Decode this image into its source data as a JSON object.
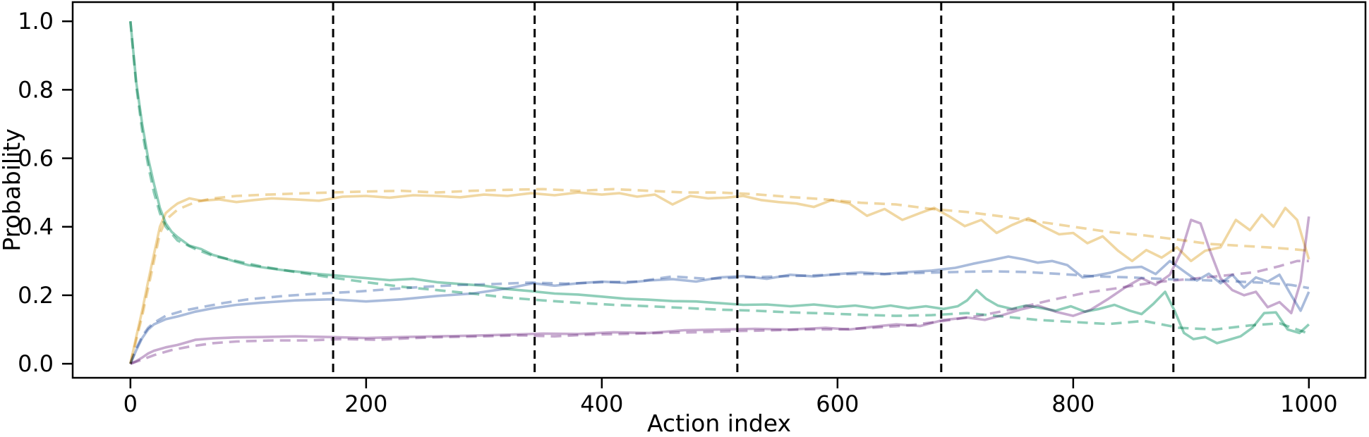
{
  "chart_data": {
    "type": "line",
    "title": "",
    "xlabel": "Action index",
    "ylabel": "Probability",
    "xlim": [
      -49,
      1048
    ],
    "ylim": [
      -0.041,
      1.056
    ],
    "xticks": [
      0,
      200,
      400,
      600,
      800,
      1000
    ],
    "xtick_labels": [
      "0",
      "200",
      "400",
      "600",
      "800",
      "1000"
    ],
    "yticks": [
      0.0,
      0.2,
      0.4,
      0.6,
      0.8,
      1.0
    ],
    "ytick_labels": [
      "0.0",
      "0.2",
      "0.4",
      "0.6",
      "0.8",
      "1.0"
    ],
    "grid": false,
    "legend_position": "none",
    "vlines": {
      "x": [
        172,
        343,
        515,
        688,
        885
      ],
      "style": "dashed",
      "color": "#000000"
    },
    "series": [
      {
        "id": "green-solid",
        "color": "#8fceb9",
        "dash": false,
        "x": [
          0,
          5,
          10,
          15,
          20,
          25,
          30,
          35,
          40,
          50,
          60,
          70,
          80,
          90,
          100,
          115,
          130,
          145,
          160,
          180,
          200,
          220,
          240,
          260,
          280,
          300,
          320,
          340,
          360,
          380,
          400,
          420,
          440,
          460,
          480,
          500,
          520,
          540,
          560,
          580,
          600,
          615,
          630,
          645,
          660,
          675,
          690,
          702,
          710,
          718,
          726,
          736,
          748,
          760,
          772,
          785,
          798,
          810,
          822,
          835,
          848,
          858,
          868,
          878,
          886,
          894,
          902,
          912,
          922,
          932,
          942,
          952,
          962,
          972,
          982,
          992,
          1000
        ],
        "y": [
          1.0,
          0.82,
          0.7,
          0.6,
          0.525,
          0.455,
          0.41,
          0.385,
          0.37,
          0.345,
          0.335,
          0.318,
          0.308,
          0.297,
          0.288,
          0.28,
          0.273,
          0.268,
          0.262,
          0.256,
          0.25,
          0.244,
          0.248,
          0.238,
          0.233,
          0.228,
          0.218,
          0.212,
          0.205,
          0.202,
          0.196,
          0.19,
          0.187,
          0.183,
          0.182,
          0.177,
          0.172,
          0.173,
          0.168,
          0.173,
          0.166,
          0.17,
          0.163,
          0.17,
          0.162,
          0.168,
          0.16,
          0.168,
          0.185,
          0.215,
          0.19,
          0.17,
          0.16,
          0.17,
          0.163,
          0.155,
          0.168,
          0.152,
          0.16,
          0.172,
          0.155,
          0.145,
          0.175,
          0.21,
          0.155,
          0.09,
          0.072,
          0.078,
          0.06,
          0.07,
          0.08,
          0.105,
          0.148,
          0.15,
          0.1,
          0.09,
          0.115
        ]
      },
      {
        "id": "green-dashed",
        "color": "#8fceb9",
        "dash": true,
        "x": [
          0,
          5,
          10,
          15,
          20,
          25,
          30,
          40,
          55,
          70,
          90,
          110,
          140,
          170,
          200,
          230,
          260,
          290,
          320,
          350,
          380,
          410,
          440,
          470,
          500,
          530,
          560,
          590,
          620,
          650,
          680,
          710,
          740,
          770,
          800,
          830,
          860,
          890,
          920,
          950,
          975,
          1000
        ],
        "y": [
          1.0,
          0.81,
          0.68,
          0.58,
          0.5,
          0.44,
          0.4,
          0.36,
          0.335,
          0.315,
          0.3,
          0.285,
          0.268,
          0.252,
          0.238,
          0.225,
          0.215,
          0.205,
          0.193,
          0.185,
          0.178,
          0.172,
          0.168,
          0.163,
          0.158,
          0.155,
          0.15,
          0.147,
          0.143,
          0.14,
          0.142,
          0.148,
          0.138,
          0.128,
          0.122,
          0.116,
          0.125,
          0.105,
          0.1,
          0.112,
          0.118,
          0.088
        ]
      },
      {
        "id": "yellow-solid",
        "color": "#f0d7a2",
        "dash": false,
        "x": [
          0,
          5,
          10,
          15,
          20,
          25,
          30,
          35,
          40,
          50,
          60,
          75,
          90,
          105,
          120,
          140,
          160,
          180,
          200,
          220,
          240,
          260,
          280,
          300,
          320,
          340,
          360,
          380,
          400,
          415,
          430,
          445,
          460,
          475,
          490,
          505,
          520,
          535,
          550,
          565,
          580,
          595,
          610,
          625,
          640,
          655,
          670,
          682,
          695,
          708,
          722,
          735,
          748,
          762,
          775,
          788,
          800,
          812,
          825,
          838,
          850,
          862,
          875,
          888,
          900,
          912,
          925,
          938,
          950,
          960,
          970,
          980,
          990,
          1000
        ],
        "y": [
          0,
          0.08,
          0.155,
          0.24,
          0.32,
          0.4,
          0.44,
          0.455,
          0.468,
          0.483,
          0.476,
          0.48,
          0.472,
          0.478,
          0.483,
          0.48,
          0.476,
          0.488,
          0.49,
          0.485,
          0.492,
          0.49,
          0.486,
          0.494,
          0.49,
          0.498,
          0.492,
          0.5,
          0.494,
          0.498,
          0.488,
          0.494,
          0.465,
          0.49,
          0.483,
          0.485,
          0.49,
          0.478,
          0.472,
          0.468,
          0.458,
          0.478,
          0.468,
          0.432,
          0.452,
          0.42,
          0.44,
          0.455,
          0.43,
          0.402,
          0.42,
          0.382,
          0.405,
          0.425,
          0.4,
          0.378,
          0.382,
          0.352,
          0.372,
          0.33,
          0.3,
          0.332,
          0.31,
          0.34,
          0.3,
          0.33,
          0.34,
          0.42,
          0.39,
          0.435,
          0.4,
          0.455,
          0.42,
          0.305
        ]
      },
      {
        "id": "yellow-dashed",
        "color": "#f0d7a2",
        "dash": true,
        "x": [
          0,
          5,
          10,
          15,
          20,
          25,
          30,
          40,
          55,
          70,
          90,
          110,
          140,
          170,
          200,
          230,
          260,
          290,
          320,
          350,
          380,
          410,
          440,
          470,
          500,
          530,
          560,
          590,
          620,
          650,
          680,
          710,
          740,
          770,
          800,
          830,
          860,
          890,
          915,
          940,
          965,
          985,
          1000
        ],
        "y": [
          0,
          0.07,
          0.14,
          0.22,
          0.3,
          0.38,
          0.42,
          0.45,
          0.472,
          0.483,
          0.49,
          0.493,
          0.497,
          0.5,
          0.503,
          0.505,
          0.5,
          0.505,
          0.508,
          0.51,
          0.505,
          0.51,
          0.505,
          0.5,
          0.5,
          0.495,
          0.487,
          0.48,
          0.47,
          0.465,
          0.452,
          0.443,
          0.43,
          0.415,
          0.4,
          0.385,
          0.375,
          0.362,
          0.35,
          0.345,
          0.34,
          0.335,
          0.33
        ]
      },
      {
        "id": "blue-solid",
        "color": "#a9bbdb",
        "dash": false,
        "x": [
          0,
          5,
          10,
          15,
          20,
          30,
          40,
          55,
          70,
          90,
          110,
          140,
          170,
          200,
          230,
          260,
          290,
          320,
          342,
          360,
          380,
          400,
          420,
          440,
          460,
          480,
          500,
          520,
          540,
          560,
          580,
          600,
          620,
          640,
          660,
          680,
          700,
          715,
          730,
          745,
          758,
          770,
          782,
          795,
          808,
          820,
          832,
          845,
          858,
          870,
          882,
          894,
          905,
          915,
          925,
          935,
          945,
          955,
          965,
          975,
          985,
          993,
          1000
        ],
        "y": [
          0,
          0.04,
          0.075,
          0.1,
          0.115,
          0.13,
          0.138,
          0.152,
          0.162,
          0.172,
          0.178,
          0.185,
          0.188,
          0.182,
          0.188,
          0.198,
          0.205,
          0.22,
          0.235,
          0.228,
          0.235,
          0.24,
          0.236,
          0.243,
          0.247,
          0.24,
          0.252,
          0.256,
          0.248,
          0.26,
          0.255,
          0.262,
          0.267,
          0.262,
          0.268,
          0.272,
          0.28,
          0.292,
          0.302,
          0.313,
          0.305,
          0.295,
          0.3,
          0.288,
          0.252,
          0.258,
          0.266,
          0.28,
          0.283,
          0.262,
          0.3,
          0.27,
          0.243,
          0.263,
          0.235,
          0.26,
          0.222,
          0.252,
          0.24,
          0.26,
          0.2,
          0.155,
          0.21
        ]
      },
      {
        "id": "blue-dashed",
        "color": "#a9bbdb",
        "dash": true,
        "x": [
          0,
          5,
          10,
          15,
          20,
          30,
          45,
          60,
          80,
          100,
          130,
          160,
          190,
          220,
          250,
          280,
          310,
          340,
          370,
          400,
          430,
          460,
          490,
          520,
          550,
          580,
          610,
          640,
          670,
          700,
          730,
          760,
          790,
          820,
          850,
          880,
          910,
          940,
          965,
          985,
          1000
        ],
        "y": [
          0,
          0.045,
          0.08,
          0.105,
          0.12,
          0.14,
          0.155,
          0.165,
          0.178,
          0.188,
          0.198,
          0.205,
          0.21,
          0.218,
          0.225,
          0.23,
          0.233,
          0.237,
          0.234,
          0.238,
          0.24,
          0.255,
          0.248,
          0.252,
          0.255,
          0.258,
          0.262,
          0.262,
          0.265,
          0.268,
          0.27,
          0.268,
          0.262,
          0.255,
          0.252,
          0.247,
          0.244,
          0.24,
          0.236,
          0.23,
          0.221
        ]
      },
      {
        "id": "purple-solid",
        "color": "#c7aacf",
        "dash": false,
        "x": [
          0,
          5,
          10,
          15,
          20,
          30,
          40,
          55,
          70,
          90,
          110,
          140,
          170,
          200,
          230,
          260,
          290,
          320,
          350,
          380,
          410,
          440,
          470,
          500,
          530,
          560,
          590,
          610,
          630,
          650,
          670,
          690,
          710,
          725,
          740,
          755,
          770,
          785,
          800,
          815,
          830,
          845,
          858,
          870,
          882,
          892,
          900,
          908,
          916,
          925,
          935,
          945,
          955,
          965,
          975,
          985,
          993,
          1000
        ],
        "y": [
          0,
          0.008,
          0.018,
          0.03,
          0.038,
          0.048,
          0.055,
          0.07,
          0.074,
          0.077,
          0.078,
          0.08,
          0.078,
          0.075,
          0.078,
          0.08,
          0.082,
          0.085,
          0.088,
          0.087,
          0.092,
          0.09,
          0.098,
          0.1,
          0.102,
          0.1,
          0.105,
          0.1,
          0.108,
          0.115,
          0.11,
          0.128,
          0.135,
          0.128,
          0.142,
          0.158,
          0.17,
          0.152,
          0.14,
          0.158,
          0.19,
          0.225,
          0.25,
          0.23,
          0.26,
          0.33,
          0.42,
          0.41,
          0.33,
          0.25,
          0.215,
          0.2,
          0.21,
          0.165,
          0.18,
          0.148,
          0.24,
          0.43
        ]
      },
      {
        "id": "purple-dashed",
        "color": "#c7aacf",
        "dash": true,
        "x": [
          0,
          5,
          10,
          20,
          35,
          50,
          70,
          90,
          120,
          150,
          180,
          210,
          240,
          270,
          300,
          330,
          360,
          390,
          420,
          450,
          480,
          510,
          540,
          570,
          600,
          630,
          660,
          690,
          720,
          750,
          780,
          810,
          840,
          870,
          900,
          930,
          955,
          975,
          990,
          1000
        ],
        "y": [
          0,
          0.006,
          0.012,
          0.025,
          0.04,
          0.05,
          0.06,
          0.065,
          0.068,
          0.068,
          0.072,
          0.07,
          0.075,
          0.078,
          0.08,
          0.083,
          0.08,
          0.085,
          0.087,
          0.09,
          0.092,
          0.095,
          0.097,
          0.1,
          0.1,
          0.105,
          0.112,
          0.125,
          0.14,
          0.16,
          0.185,
          0.207,
          0.222,
          0.238,
          0.248,
          0.258,
          0.268,
          0.285,
          0.3,
          0.3
        ]
      }
    ]
  },
  "style": {
    "spine_color": "#000000",
    "background": "#ffffff"
  }
}
